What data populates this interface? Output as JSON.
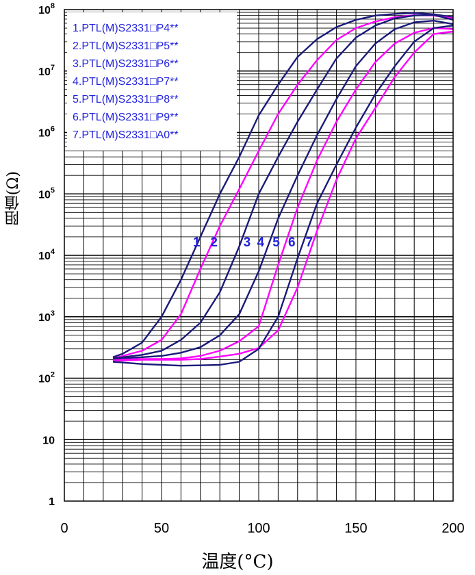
{
  "chart_data": {
    "type": "line",
    "title": "",
    "xlabel": "温度(°C)",
    "ylabel": "阻值(Ω)",
    "xlim": [
      0,
      200
    ],
    "ylim": [
      1,
      100000000
    ],
    "yscale": "log",
    "grid": true,
    "legend_position": "top-left",
    "x_ticks": [
      "0",
      "50",
      "100",
      "150",
      "200"
    ],
    "y_ticks": [
      {
        "base": "1",
        "exp": ""
      },
      {
        "base": "10",
        "exp": ""
      },
      {
        "base": "10",
        "exp": "2"
      },
      {
        "base": "10",
        "exp": "3"
      },
      {
        "base": "10",
        "exp": "4"
      },
      {
        "base": "10",
        "exp": "5"
      },
      {
        "base": "10",
        "exp": "6"
      },
      {
        "base": "10",
        "exp": "7"
      },
      {
        "base": "10",
        "exp": "8"
      }
    ],
    "colors": {
      "navy": "#1a1a7a",
      "magenta": "#ff00ff",
      "blue_text": "#2222dd"
    },
    "series": [
      {
        "name": "1.PTL(M)S2331□P4**",
        "label": "1",
        "label_x": 68,
        "color": "navy",
        "x": [
          25,
          30,
          40,
          50,
          60,
          70,
          80,
          90,
          100,
          110,
          120,
          130,
          140,
          150,
          160,
          170,
          180,
          190,
          200
        ],
        "y": [
          220,
          250,
          380,
          1000,
          4000,
          20000,
          100000,
          400000,
          1900000,
          6000000,
          17000000,
          33000000,
          52000000,
          68000000,
          80000000,
          85000000,
          88000000,
          84000000,
          75000000
        ]
      },
      {
        "name": "2.PTL(M)S2331□P5**",
        "label": "2",
        "label_x": 77,
        "color": "magenta",
        "x": [
          25,
          30,
          40,
          50,
          60,
          70,
          80,
          90,
          100,
          110,
          120,
          130,
          140,
          150,
          160,
          170,
          180,
          190,
          200
        ],
        "y": [
          210,
          230,
          280,
          420,
          1100,
          6000,
          30000,
          120000,
          500000,
          2000000,
          6000000,
          15000000,
          32000000,
          50000000,
          64000000,
          75000000,
          81000000,
          80000000,
          72000000
        ]
      },
      {
        "name": "3.PTL(M)S2331□P6**",
        "label": "3",
        "label_x": 94,
        "color": "navy",
        "x": [
          25,
          30,
          40,
          50,
          60,
          70,
          80,
          90,
          100,
          110,
          120,
          130,
          140,
          150,
          160,
          170,
          180,
          190,
          200
        ],
        "y": [
          210,
          220,
          240,
          280,
          420,
          800,
          2500,
          14000,
          100000,
          400000,
          1500000,
          5000000,
          16000000,
          35000000,
          55000000,
          72000000,
          80000000,
          82000000,
          68000000
        ]
      },
      {
        "name": "4.PTL(M)S2331□P7**",
        "label": "4",
        "label_x": 101,
        "color": "navy",
        "x": [
          25,
          30,
          40,
          50,
          60,
          70,
          80,
          90,
          100,
          110,
          120,
          130,
          140,
          150,
          160,
          170,
          180,
          190,
          200
        ],
        "y": [
          200,
          210,
          220,
          230,
          260,
          320,
          500,
          1100,
          5500,
          40000,
          200000,
          900000,
          3500000,
          12000000,
          28000000,
          48000000,
          62000000,
          66000000,
          58000000
        ]
      },
      {
        "name": "5.PTL(M)S2331□P8**",
        "label": "5",
        "label_x": 109,
        "color": "magenta",
        "x": [
          25,
          30,
          40,
          50,
          60,
          70,
          80,
          90,
          100,
          110,
          120,
          130,
          140,
          150,
          160,
          170,
          180,
          190,
          200
        ],
        "y": [
          195,
          200,
          205,
          205,
          210,
          230,
          280,
          400,
          700,
          7000,
          60000,
          350000,
          1500000,
          5000000,
          14000000,
          28000000,
          42000000,
          50000000,
          48000000
        ]
      },
      {
        "name": "6.PTL(M)S2331□P9**",
        "label": "6",
        "label_x": 117,
        "color": "magenta",
        "x": [
          25,
          30,
          40,
          50,
          60,
          70,
          80,
          90,
          100,
          110,
          120,
          130,
          140,
          150,
          160,
          170,
          180,
          190,
          200
        ],
        "y": [
          195,
          195,
          200,
          200,
          200,
          205,
          225,
          250,
          310,
          600,
          3000,
          25000,
          170000,
          800000,
          2500000,
          8000000,
          20000000,
          40000000,
          44000000
        ]
      },
      {
        "name": "7.PTL(M)S2331□A0**",
        "label": "7",
        "label_x": 126,
        "color": "navy",
        "x": [
          25,
          30,
          40,
          50,
          60,
          70,
          80,
          90,
          100,
          110,
          120,
          130,
          140,
          150,
          160,
          170,
          180,
          190,
          200
        ],
        "y": [
          185,
          180,
          170,
          165,
          160,
          162,
          165,
          185,
          300,
          1000,
          9000,
          70000,
          300000,
          1200000,
          4200000,
          12000000,
          30000000,
          50000000,
          55000000
        ]
      }
    ]
  }
}
